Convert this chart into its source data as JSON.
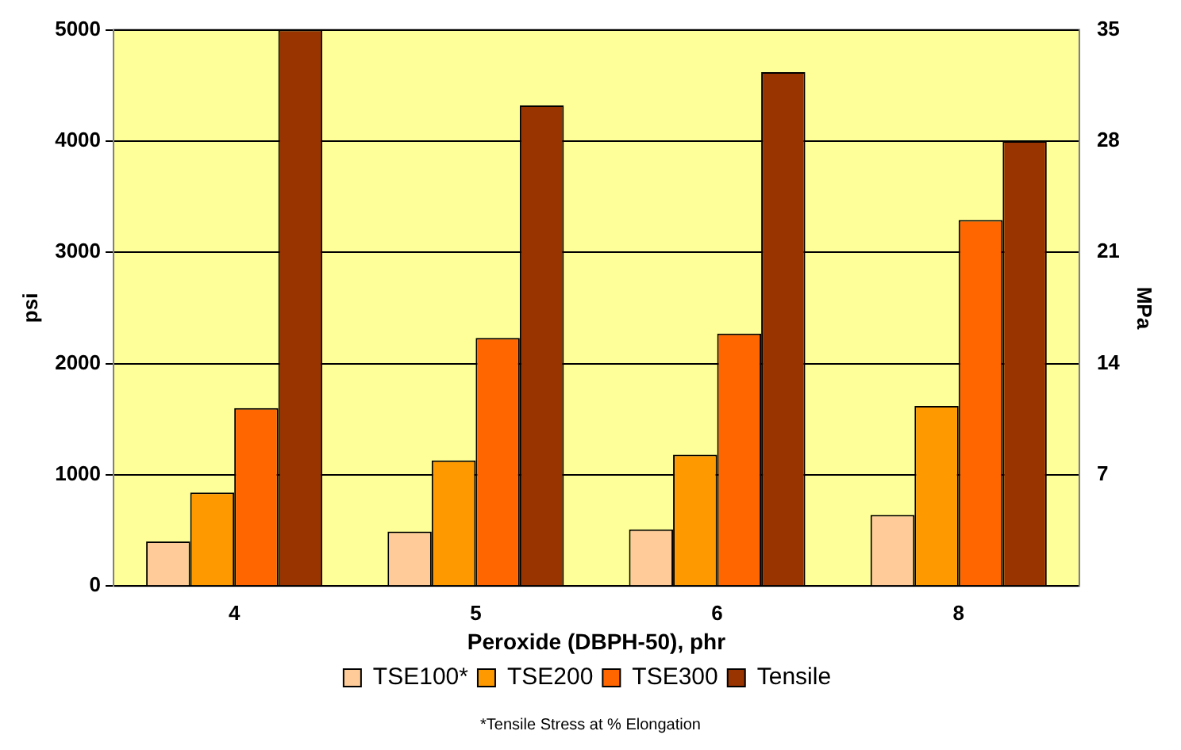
{
  "chart_data": {
    "type": "bar",
    "categories": [
      "4",
      "5",
      "6",
      "8"
    ],
    "series": [
      {
        "name": "TSE100*",
        "color": "#ffcc99",
        "values": [
          400,
          490,
          510,
          640
        ]
      },
      {
        "name": "TSE200",
        "color": "#ff9900",
        "values": [
          840,
          1130,
          1180,
          1620
        ]
      },
      {
        "name": "TSE300",
        "color": "#ff6600",
        "values": [
          1600,
          2230,
          2270,
          3290
        ]
      },
      {
        "name": "Tensile",
        "color": "#993300",
        "values": [
          5000,
          4320,
          4620,
          4000
        ]
      }
    ],
    "xlabel": "Peroxide (DBPH-50), phr",
    "ylabel": "psi",
    "y2label": "MPa",
    "ylim": [
      0,
      5000
    ],
    "yticks": [
      0,
      1000,
      2000,
      3000,
      4000,
      5000
    ],
    "y2lim": [
      0,
      35
    ],
    "y2ticks": [
      7,
      14,
      21,
      28,
      35
    ],
    "grid": "y",
    "legend": "bottom",
    "annotations": [
      "*Tensile Stress at % Elongation"
    ]
  }
}
